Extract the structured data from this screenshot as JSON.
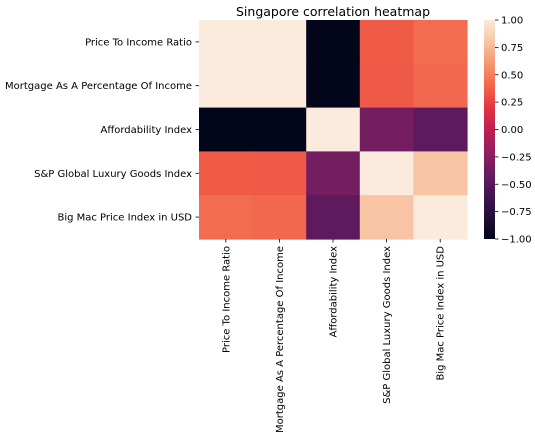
{
  "chart_data": {
    "type": "heatmap",
    "title": "Singapore correlation heatmap",
    "xlabel": "",
    "ylabel": "",
    "rows": [
      "Price To Income Ratio",
      "Mortgage As A Percentage Of Income",
      "Affordability Index",
      "S&P Global Luxury Goods Index",
      "Big Mac Price Index in USD"
    ],
    "columns": [
      "Price To Income Ratio",
      "Mortgage As A Percentage Of Income",
      "Affordability Index",
      "S&P Global Luxury Goods Index",
      "Big Mac Price Index in USD"
    ],
    "values": [
      [
        1.0,
        1.0,
        -1.0,
        0.35,
        0.42
      ],
      [
        1.0,
        1.0,
        -1.0,
        0.34,
        0.4
      ],
      [
        -1.0,
        -1.0,
        1.0,
        -0.35,
        -0.45
      ],
      [
        0.35,
        0.34,
        -0.35,
        1.0,
        0.8
      ],
      [
        0.42,
        0.4,
        -0.45,
        0.8,
        1.0
      ]
    ],
    "colorbar": {
      "min": -1.0,
      "max": 1.0,
      "ticks": [
        "1.00",
        "0.75",
        "0.50",
        "0.25",
        "0.00",
        "−0.25",
        "−0.50",
        "−0.75",
        "−1.00"
      ],
      "colormap": "rocket"
    },
    "grid": false
  }
}
